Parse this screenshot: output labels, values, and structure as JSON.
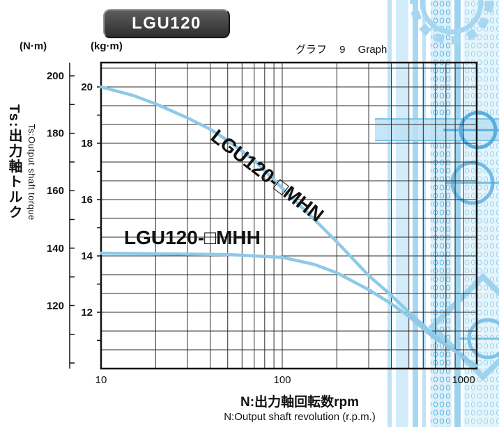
{
  "page": {
    "title_badge": "LGU120",
    "graph_caption": "グラフ 9 Graph"
  },
  "axes": {
    "y_left_unit": "(N·m)",
    "y_inner_unit": "(kg·m)",
    "y_title_ja": "Ts:出力軸トルク",
    "y_title_en": "Ts:Output shaft torque",
    "x_title_ja": "N:出力軸回転数rpm",
    "x_title_en": "N:Output shaft revolution (r.p.m.)"
  },
  "chart_data": {
    "type": "line",
    "title": "グラフ 9 Graph",
    "xlabel": "N:Output shaft revolution (r.p.m.)",
    "ylabel": "Ts:Output shaft torque",
    "x_axis": {
      "scale": "log",
      "min": 10,
      "max": 1180,
      "ticks": [
        10,
        100,
        1000
      ],
      "minor": [
        20,
        30,
        40,
        50,
        60,
        70,
        80,
        90,
        200,
        300,
        400,
        500,
        600,
        700,
        800,
        900
      ]
    },
    "y_axis_kgm": {
      "unit": "kg·m",
      "min": 10,
      "max": 20.86,
      "ticks": [
        20,
        18,
        16,
        14,
        12
      ]
    },
    "y_axis_nm": {
      "unit": "N·m",
      "ticks": [
        200,
        180,
        160,
        140,
        120
      ],
      "minor_step": 10
    },
    "series": [
      {
        "name": "LGU120-□MHN",
        "points": [
          [
            10,
            20.0
          ],
          [
            15,
            19.7
          ],
          [
            20,
            19.4
          ],
          [
            30,
            18.9
          ],
          [
            40,
            18.5
          ],
          [
            50,
            18.1
          ],
          [
            70,
            17.4
          ],
          [
            100,
            16.4
          ],
          [
            150,
            15.3
          ],
          [
            200,
            14.5
          ],
          [
            300,
            13.3
          ],
          [
            400,
            12.6
          ],
          [
            500,
            12.0
          ],
          [
            700,
            11.15
          ],
          [
            800,
            10.85
          ],
          [
            1000,
            10.4
          ],
          [
            1180,
            10.1
          ]
        ]
      },
      {
        "name": "LGU120-□MHH",
        "points": [
          [
            10,
            14.1
          ],
          [
            50,
            14.05
          ],
          [
            100,
            13.95
          ],
          [
            150,
            13.7
          ],
          [
            200,
            13.4
          ],
          [
            300,
            12.8
          ],
          [
            400,
            12.3
          ],
          [
            500,
            11.85
          ],
          [
            700,
            11.05
          ],
          [
            800,
            10.85
          ],
          [
            1000,
            10.4
          ],
          [
            1180,
            10.1
          ]
        ]
      }
    ]
  }
}
